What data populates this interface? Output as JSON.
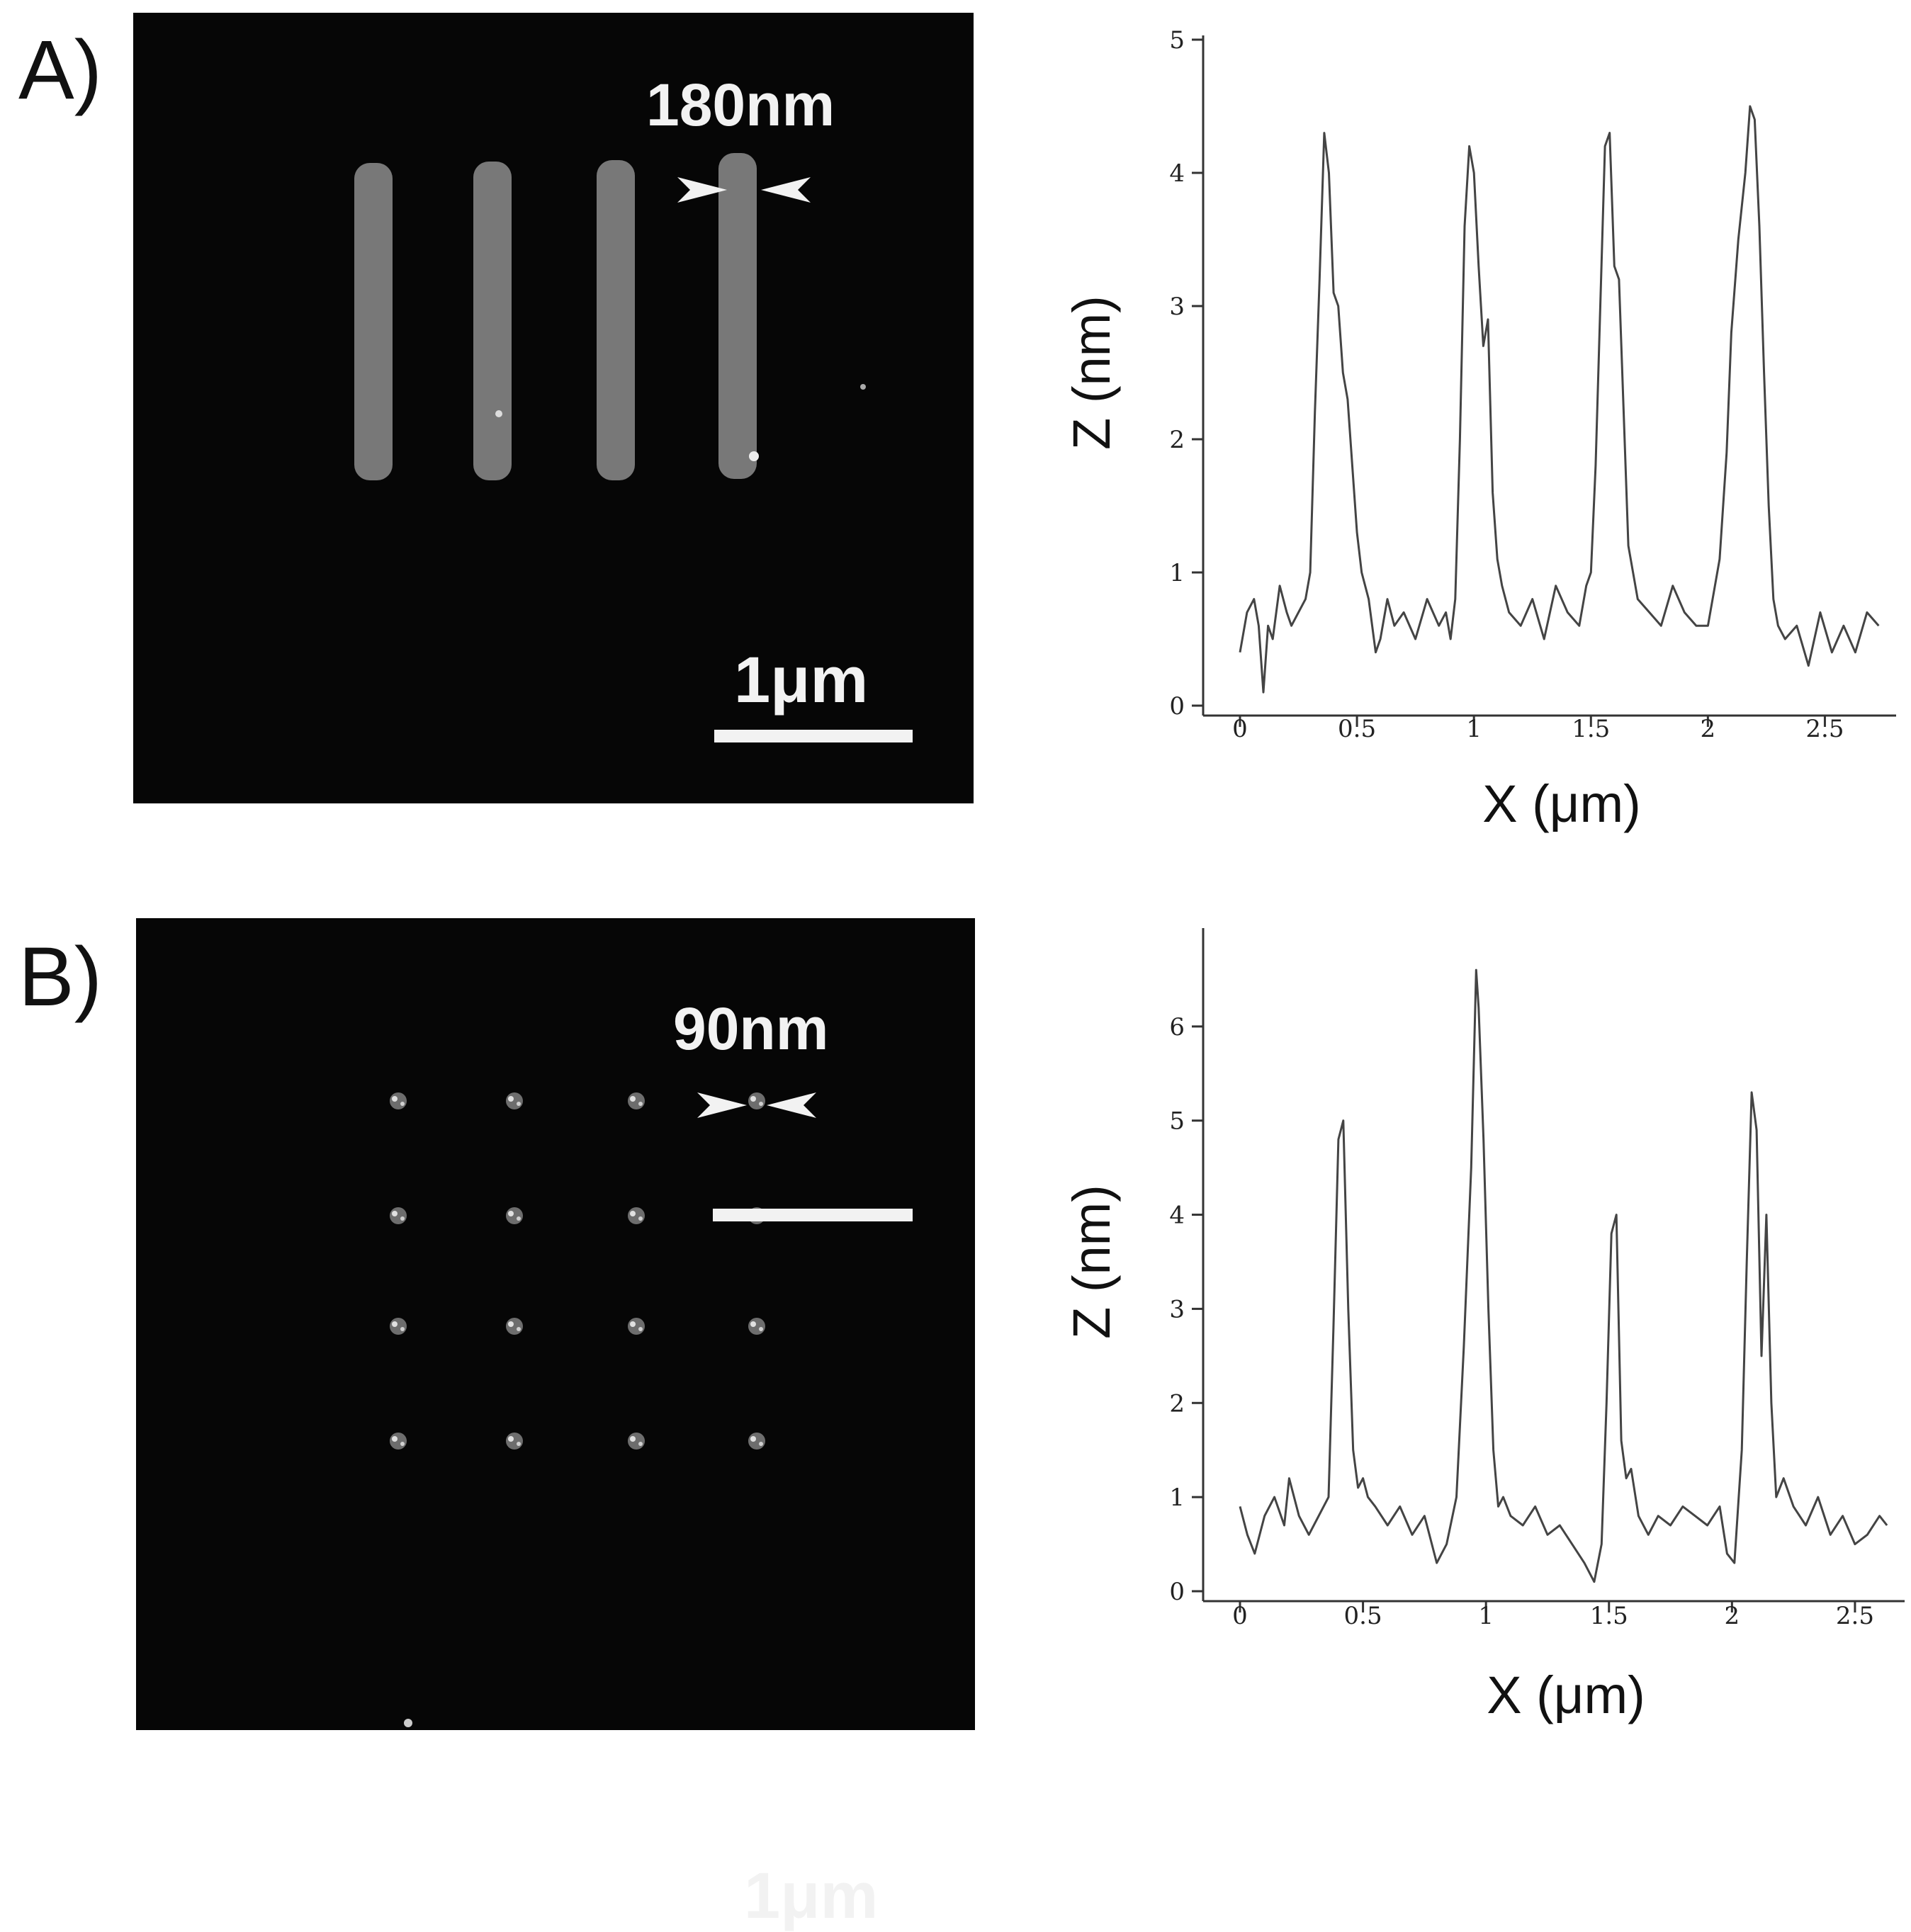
{
  "panels": {
    "a": {
      "letter": "A)",
      "image_label": "180nm",
      "scale_label": "1μm"
    },
    "b": {
      "letter": "B)",
      "image_label": "90nm",
      "scale_label": "1μm"
    }
  },
  "colors": {
    "image_background": "#060606",
    "feature": "#9a9a9a",
    "line": "#444444"
  },
  "chart_data": [
    {
      "type": "line",
      "panel": "A",
      "title": "",
      "xlabel": "X (μm)",
      "ylabel": "Z (nm)",
      "xlim": [
        0,
        2.75
      ],
      "ylim": [
        0,
        5
      ],
      "xticks": [
        0,
        0.5,
        1,
        1.5,
        2,
        2.5
      ],
      "xtick_labels": [
        "0",
        "0.5",
        "1",
        "1.5",
        "2",
        "2.5"
      ],
      "yticks": [
        0,
        1,
        2,
        3,
        4,
        5
      ],
      "ytick_labels": [
        "0",
        "1",
        "2",
        "3",
        "4",
        "5"
      ],
      "grid": false,
      "series": [
        {
          "x": [
            0.0,
            0.03,
            0.06,
            0.08,
            0.1,
            0.12,
            0.14,
            0.17,
            0.2,
            0.22,
            0.25,
            0.28,
            0.3,
            0.32,
            0.34,
            0.36,
            0.38,
            0.4,
            0.42,
            0.44,
            0.46,
            0.48,
            0.5,
            0.52,
            0.55,
            0.58,
            0.6,
            0.63,
            0.66,
            0.7,
            0.75,
            0.8,
            0.85,
            0.88,
            0.9,
            0.92,
            0.94,
            0.96,
            0.98,
            1.0,
            1.02,
            1.04,
            1.06,
            1.08,
            1.1,
            1.12,
            1.15,
            1.2,
            1.25,
            1.3,
            1.35,
            1.4,
            1.45,
            1.48,
            1.5,
            1.52,
            1.54,
            1.56,
            1.58,
            1.6,
            1.62,
            1.64,
            1.66,
            1.68,
            1.7,
            1.75,
            1.8,
            1.85,
            1.9,
            1.95,
            2.0,
            2.05,
            2.08,
            2.1,
            2.13,
            2.16,
            2.18,
            2.2,
            2.22,
            2.24,
            2.26,
            2.28,
            2.3,
            2.33,
            2.38,
            2.43,
            2.48,
            2.53,
            2.58,
            2.63,
            2.68,
            2.73
          ],
          "y": [
            0.4,
            0.7,
            0.8,
            0.6,
            0.1,
            0.6,
            0.5,
            0.9,
            0.7,
            0.6,
            0.7,
            0.8,
            1.0,
            2.2,
            3.2,
            4.3,
            4.0,
            3.1,
            3.0,
            2.5,
            2.3,
            1.8,
            1.3,
            1.0,
            0.8,
            0.4,
            0.5,
            0.8,
            0.6,
            0.7,
            0.5,
            0.8,
            0.6,
            0.7,
            0.5,
            0.8,
            2.0,
            3.6,
            4.2,
            4.0,
            3.3,
            2.7,
            2.9,
            1.6,
            1.1,
            0.9,
            0.7,
            0.6,
            0.8,
            0.5,
            0.9,
            0.7,
            0.6,
            0.9,
            1.0,
            1.8,
            3.0,
            4.2,
            4.3,
            3.3,
            3.2,
            2.2,
            1.2,
            1.0,
            0.8,
            0.7,
            0.6,
            0.9,
            0.7,
            0.6,
            0.6,
            1.1,
            1.9,
            2.8,
            3.5,
            4.0,
            4.5,
            4.4,
            3.6,
            2.5,
            1.5,
            0.8,
            0.6,
            0.5,
            0.6,
            0.3,
            0.7,
            0.4,
            0.6,
            0.4,
            0.7,
            0.6
          ]
        }
      ]
    },
    {
      "type": "line",
      "panel": "B",
      "title": "",
      "xlabel": "X (μm)",
      "ylabel": "Z (nm)",
      "xlim": [
        0,
        2.65
      ],
      "ylim": [
        0,
        7
      ],
      "xticks": [
        0,
        0.5,
        1,
        1.5,
        2,
        2.5
      ],
      "xtick_labels": [
        "0",
        "0.5",
        "1",
        "1.5",
        "2",
        "2.5"
      ],
      "yticks": [
        0,
        1,
        2,
        3,
        4,
        5,
        6
      ],
      "ytick_labels": [
        "0",
        "1",
        "2",
        "3",
        "4",
        "5",
        "6"
      ],
      "grid": false,
      "series": [
        {
          "x": [
            0.0,
            0.03,
            0.06,
            0.1,
            0.14,
            0.18,
            0.2,
            0.24,
            0.28,
            0.32,
            0.36,
            0.38,
            0.4,
            0.42,
            0.44,
            0.46,
            0.48,
            0.5,
            0.52,
            0.55,
            0.6,
            0.65,
            0.7,
            0.75,
            0.8,
            0.84,
            0.88,
            0.91,
            0.94,
            0.96,
            0.97,
            0.99,
            1.01,
            1.03,
            1.05,
            1.07,
            1.1,
            1.15,
            1.2,
            1.25,
            1.3,
            1.35,
            1.4,
            1.44,
            1.47,
            1.49,
            1.51,
            1.53,
            1.55,
            1.57,
            1.59,
            1.62,
            1.66,
            1.7,
            1.75,
            1.8,
            1.85,
            1.9,
            1.95,
            1.98,
            2.01,
            2.04,
            2.06,
            2.08,
            2.1,
            2.12,
            2.14,
            2.16,
            2.18,
            2.21,
            2.25,
            2.3,
            2.35,
            2.4,
            2.45,
            2.5,
            2.55,
            2.6,
            2.63
          ],
          "y": [
            0.9,
            0.6,
            0.4,
            0.8,
            1.0,
            0.7,
            1.2,
            0.8,
            0.6,
            0.8,
            1.0,
            2.8,
            4.8,
            5.0,
            3.0,
            1.5,
            1.1,
            1.2,
            1.0,
            0.9,
            0.7,
            0.9,
            0.6,
            0.8,
            0.3,
            0.5,
            1.0,
            2.6,
            4.5,
            6.6,
            6.2,
            4.8,
            3.0,
            1.5,
            0.9,
            1.0,
            0.8,
            0.7,
            0.9,
            0.6,
            0.7,
            0.5,
            0.3,
            0.1,
            0.5,
            2.0,
            3.8,
            4.0,
            1.6,
            1.2,
            1.3,
            0.8,
            0.6,
            0.8,
            0.7,
            0.9,
            0.8,
            0.7,
            0.9,
            0.4,
            0.3,
            1.5,
            3.5,
            5.3,
            4.9,
            2.5,
            4.0,
            2.0,
            1.0,
            1.2,
            0.9,
            0.7,
            1.0,
            0.6,
            0.8,
            0.5,
            0.6,
            0.8,
            0.7
          ]
        }
      ]
    }
  ]
}
